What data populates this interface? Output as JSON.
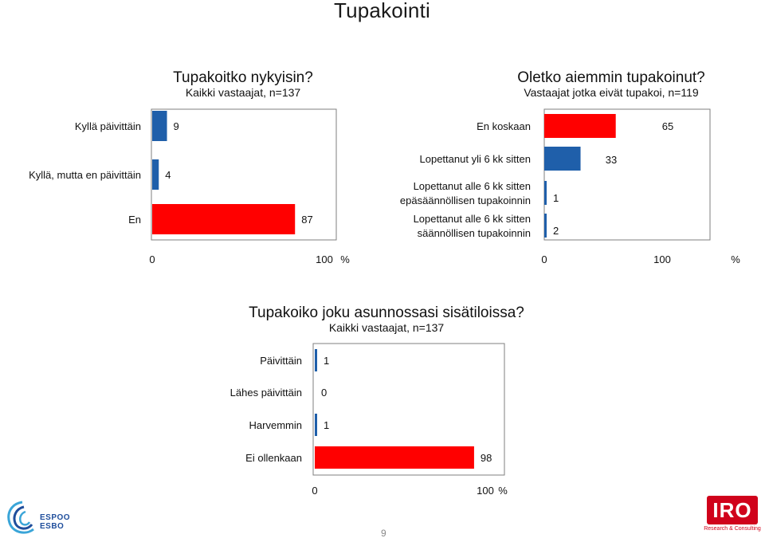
{
  "page": {
    "title": "Tupakointi",
    "page_number": "9"
  },
  "colors": {
    "blue": "#1f5faa",
    "red": "#ff0000"
  },
  "logos": {
    "espoo_line1": "ESPOO",
    "espoo_line2": "ESBO",
    "iro_text": "IRO",
    "iro_sub": "Research & Consulting"
  },
  "chart_data": [
    {
      "type": "bar",
      "orientation": "horizontal",
      "title": "Tupakoitko nykyisin?",
      "subtitle": "Kaikki vastaajat, n=137",
      "categories": [
        "Kyllä päivittäin",
        "Kyllä, mutta en päivittäin",
        "En"
      ],
      "values": [
        9,
        4,
        87
      ],
      "value_labels": [
        "9",
        "4",
        "87"
      ],
      "bar_colors": [
        "blue",
        "blue",
        "red"
      ],
      "xlim": [
        0,
        100
      ],
      "tick_labels": [
        "0",
        "100"
      ],
      "unit": "%"
    },
    {
      "type": "bar",
      "orientation": "horizontal",
      "title": "Oletko aiemmin tupakoinut?",
      "subtitle": "Vastaajat jotka eivät tupakoi, n=119",
      "categories": [
        [
          "En koskaan"
        ],
        [
          "Lopettanut yli 6 kk sitten"
        ],
        [
          "Lopettanut alle 6 kk sitten",
          "epäsäännöllisen tupakoinnin"
        ],
        [
          "Lopettanut alle 6 kk sitten",
          "säännöllisen tupakoinnin"
        ]
      ],
      "values": [
        65,
        33,
        1,
        2
      ],
      "value_labels": [
        "65",
        "33",
        "1",
        "2"
      ],
      "bar_colors": [
        "red",
        "blue",
        "blue",
        "blue"
      ],
      "xlim": [
        0,
        100
      ],
      "tick_labels": [
        "0",
        "100"
      ],
      "unit": "%"
    },
    {
      "type": "bar",
      "orientation": "horizontal",
      "title": "Tupakoiko joku asunnossasi sisätiloissa?",
      "subtitle": "Kaikki vastaajat, n=137",
      "categories": [
        "Päivittäin",
        "Lähes päivittäin",
        "Harvemmin",
        "Ei ollenkaan"
      ],
      "values": [
        1,
        0,
        1,
        98
      ],
      "value_labels": [
        "1",
        "0",
        "1",
        "98"
      ],
      "bar_colors": [
        "blue",
        "blue",
        "blue",
        "red"
      ],
      "xlim": [
        0,
        100
      ],
      "tick_labels": [
        "0",
        "100"
      ],
      "unit": "%"
    }
  ]
}
